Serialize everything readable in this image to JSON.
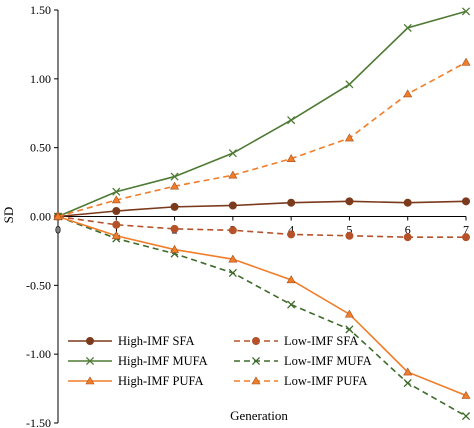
{
  "chart_data": {
    "type": "line",
    "title": "",
    "xlabel": "Generation",
    "ylabel": "SD",
    "x": [
      0,
      1,
      2,
      3,
      4,
      5,
      6,
      7
    ],
    "xlim": [
      0,
      7
    ],
    "ylim": [
      -1.5,
      1.5
    ],
    "yticks": [
      "1.50",
      "1.00",
      "0.50",
      "0.00",
      "-0.50",
      "-1.00",
      "-1.50"
    ],
    "ytick_values": [
      1.5,
      1.0,
      0.5,
      0.0,
      -0.5,
      -1.0,
      -1.5
    ],
    "xticks": [
      "0",
      "1",
      "2",
      "3",
      "4",
      "5",
      "6",
      "7"
    ],
    "grid": false,
    "legend_position": "bottom-left",
    "series": [
      {
        "name": "High-IMF SFA",
        "color": "#7b3a1c",
        "dash": "solid",
        "marker": "circle",
        "values": [
          0.0,
          0.04,
          0.07,
          0.08,
          0.1,
          0.11,
          0.1,
          0.11
        ]
      },
      {
        "name": "Low-IMF SFA",
        "color": "#b5522a",
        "dash": "dashed",
        "marker": "circle",
        "values": [
          0.0,
          -0.06,
          -0.09,
          -0.1,
          -0.13,
          -0.14,
          -0.15,
          -0.15
        ]
      },
      {
        "name": "High-IMF MUFA",
        "color": "#4e7a34",
        "dash": "solid",
        "marker": "x",
        "values": [
          0.0,
          0.18,
          0.29,
          0.46,
          0.7,
          0.96,
          1.37,
          1.49
        ]
      },
      {
        "name": "Low-IMF MUFA",
        "color": "#3e6a2a",
        "dash": "dashed",
        "marker": "x",
        "values": [
          0.0,
          -0.16,
          -0.27,
          -0.41,
          -0.64,
          -0.82,
          -1.21,
          -1.45
        ]
      },
      {
        "name": "High-IMF PUFA",
        "color": "#f07d2a",
        "dash": "solid",
        "marker": "triangle",
        "values": [
          0.0,
          -0.14,
          -0.24,
          -0.31,
          -0.46,
          -0.71,
          -1.13,
          -1.3
        ]
      },
      {
        "name": "Low-IMF PUFA",
        "color": "#f07d2a",
        "dash": "dashed",
        "marker": "triangle",
        "values": [
          0.0,
          0.12,
          0.22,
          0.3,
          0.42,
          0.57,
          0.89,
          1.12
        ]
      }
    ]
  }
}
